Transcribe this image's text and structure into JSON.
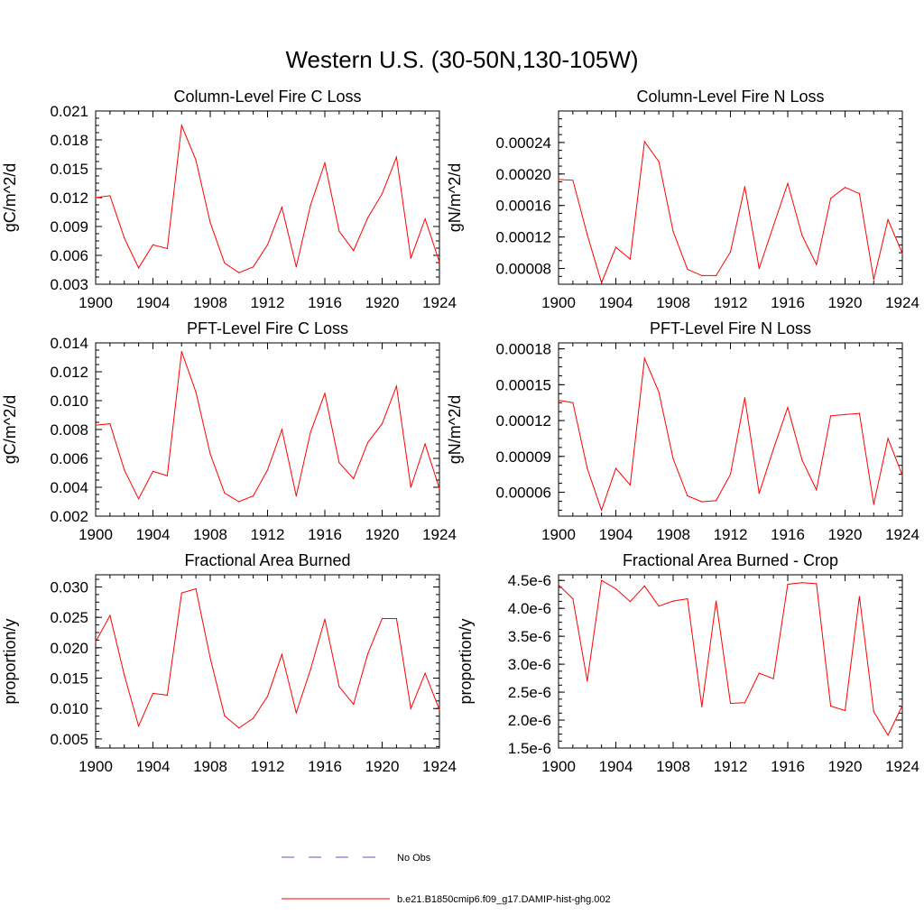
{
  "figure": {
    "title": "Western U.S. (30-50N,130-105W)"
  },
  "colors": {
    "series": "#ff0000",
    "obs": "#5a5ac8",
    "axis": "#000000"
  },
  "legend": {
    "items": [
      {
        "label": "No Obs",
        "style": "dashed",
        "color": "#5a5ac8"
      },
      {
        "label": "b.e21.B1850cmip6.f09_g17.DAMIP-hist-ghg.002",
        "style": "solid",
        "color": "#ff0000"
      }
    ]
  },
  "chart_data": [
    {
      "type": "line",
      "title": "Column-Level Fire C Loss",
      "ylabel": "gC/m^2/d",
      "xlim": [
        1900,
        1924
      ],
      "ylim": [
        0.003,
        0.021
      ],
      "xticks": [
        1900,
        1904,
        1908,
        1912,
        1916,
        1920,
        1924
      ],
      "xtick_labels": [
        "1900",
        "1904",
        "1908",
        "1912",
        "1916",
        "1920",
        "1924"
      ],
      "yticks": [
        0.003,
        0.006,
        0.009,
        0.012,
        0.015,
        0.018,
        0.021
      ],
      "ytick_labels": [
        "0.003",
        "0.006",
        "0.009",
        "0.012",
        "0.015",
        "0.018",
        "0.021"
      ],
      "x": [
        1900,
        1901,
        1902,
        1903,
        1904,
        1905,
        1906,
        1907,
        1908,
        1909,
        1910,
        1911,
        1912,
        1913,
        1914,
        1915,
        1916,
        1917,
        1918,
        1919,
        1920,
        1921,
        1922,
        1923,
        1924
      ],
      "series": [
        {
          "name": "b.e21.B1850cmip6.f09_g17.DAMIP-hist-ghg.002",
          "values": [
            0.012,
            0.0122,
            0.0078,
            0.0047,
            0.0071,
            0.0067,
            0.0195,
            0.0159,
            0.0094,
            0.0052,
            0.0042,
            0.0048,
            0.0071,
            0.011,
            0.0048,
            0.0112,
            0.0156,
            0.0085,
            0.0065,
            0.0099,
            0.0124,
            0.0162,
            0.0057,
            0.0098,
            0.0053
          ]
        }
      ]
    },
    {
      "type": "line",
      "title": "Column-Level Fire N Loss",
      "ylabel": "gN/m^2/d",
      "xlim": [
        1900,
        1924
      ],
      "ylim": [
        6e-05,
        0.00028
      ],
      "xticks": [
        1900,
        1904,
        1908,
        1912,
        1916,
        1920,
        1924
      ],
      "xtick_labels": [
        "1900",
        "1904",
        "1908",
        "1912",
        "1916",
        "1920",
        "1924"
      ],
      "yticks": [
        8e-05,
        0.00012,
        0.00016,
        0.0002,
        0.00024
      ],
      "ytick_labels": [
        "0.00008",
        "0.00012",
        "0.00016",
        "0.00020",
        "0.00024"
      ],
      "x": [
        1900,
        1901,
        1902,
        1903,
        1904,
        1905,
        1906,
        1907,
        1908,
        1909,
        1910,
        1911,
        1912,
        1913,
        1914,
        1915,
        1916,
        1917,
        1918,
        1919,
        1920,
        1921,
        1922,
        1923,
        1924
      ],
      "series": [
        {
          "name": "b.e21.B1850cmip6.f09_g17.DAMIP-hist-ghg.002",
          "values": [
            0.000193,
            0.000192,
            0.000123,
            6.2e-05,
            0.000107,
            9.2e-05,
            0.000241,
            0.000216,
            0.000127,
            7.9e-05,
            7.1e-05,
            7.1e-05,
            0.000101,
            0.000184,
            8e-05,
            0.000134,
            0.000188,
            0.000122,
            8.5e-05,
            0.000169,
            0.000183,
            0.000175,
            6.6e-05,
            0.000142,
            9.9e-05
          ]
        }
      ]
    },
    {
      "type": "line",
      "title": "PFT-Level Fire C Loss",
      "ylabel": "gC/m^2/d",
      "xlim": [
        1900,
        1924
      ],
      "ylim": [
        0.002,
        0.014
      ],
      "xticks": [
        1900,
        1904,
        1908,
        1912,
        1916,
        1920,
        1924
      ],
      "xtick_labels": [
        "1900",
        "1904",
        "1908",
        "1912",
        "1916",
        "1920",
        "1924"
      ],
      "yticks": [
        0.002,
        0.004,
        0.006,
        0.008,
        0.01,
        0.012,
        0.014
      ],
      "ytick_labels": [
        "0.002",
        "0.004",
        "0.006",
        "0.008",
        "0.010",
        "0.012",
        "0.014"
      ],
      "x": [
        1900,
        1901,
        1902,
        1903,
        1904,
        1905,
        1906,
        1907,
        1908,
        1909,
        1910,
        1911,
        1912,
        1913,
        1914,
        1915,
        1916,
        1917,
        1918,
        1919,
        1920,
        1921,
        1922,
        1923,
        1924
      ],
      "series": [
        {
          "name": "b.e21.B1850cmip6.f09_g17.DAMIP-hist-ghg.002",
          "values": [
            0.0083,
            0.0084,
            0.0052,
            0.0032,
            0.0051,
            0.0048,
            0.0134,
            0.0106,
            0.0063,
            0.0036,
            0.003,
            0.0034,
            0.0052,
            0.008,
            0.0034,
            0.0078,
            0.0105,
            0.0057,
            0.0046,
            0.0071,
            0.0084,
            0.011,
            0.004,
            0.007,
            0.0039
          ]
        }
      ]
    },
    {
      "type": "line",
      "title": "PFT-Level Fire N Loss",
      "ylabel": "gN/m^2/d",
      "xlim": [
        1900,
        1924
      ],
      "ylim": [
        4e-05,
        0.000185
      ],
      "xticks": [
        1900,
        1904,
        1908,
        1912,
        1916,
        1920,
        1924
      ],
      "xtick_labels": [
        "1900",
        "1904",
        "1908",
        "1912",
        "1916",
        "1920",
        "1924"
      ],
      "yticks": [
        6e-05,
        9e-05,
        0.00012,
        0.00015,
        0.00018
      ],
      "ytick_labels": [
        "0.00006",
        "0.00009",
        "0.00012",
        "0.00015",
        "0.00018"
      ],
      "x": [
        1900,
        1901,
        1902,
        1903,
        1904,
        1905,
        1906,
        1907,
        1908,
        1909,
        1910,
        1911,
        1912,
        1913,
        1914,
        1915,
        1916,
        1917,
        1918,
        1919,
        1920,
        1921,
        1922,
        1923,
        1924
      ],
      "series": [
        {
          "name": "b.e21.B1850cmip6.f09_g17.DAMIP-hist-ghg.002",
          "values": [
            0.000137,
            0.000135,
            8e-05,
            4.5e-05,
            8e-05,
            6.6e-05,
            0.000172,
            0.000144,
            8.8e-05,
            5.7e-05,
            5.2e-05,
            5.3e-05,
            7.5e-05,
            0.000139,
            5.9e-05,
            9.6e-05,
            0.000131,
            8.7e-05,
            6.2e-05,
            0.000124,
            0.000125,
            0.000126,
            5e-05,
            0.000105,
            7.4e-05
          ]
        }
      ]
    },
    {
      "type": "line",
      "title": "Fractional Area Burned",
      "ylabel": "proportion/y",
      "xlim": [
        1900,
        1924
      ],
      "ylim": [
        0.0035,
        0.032
      ],
      "xticks": [
        1900,
        1904,
        1908,
        1912,
        1916,
        1920,
        1924
      ],
      "xtick_labels": [
        "1900",
        "1904",
        "1908",
        "1912",
        "1916",
        "1920",
        "1924"
      ],
      "yticks": [
        0.005,
        0.01,
        0.015,
        0.02,
        0.025,
        0.03
      ],
      "ytick_labels": [
        "0.005",
        "0.010",
        "0.015",
        "0.020",
        "0.025",
        "0.030"
      ],
      "x": [
        1900,
        1901,
        1902,
        1903,
        1904,
        1905,
        1906,
        1907,
        1908,
        1909,
        1910,
        1911,
        1912,
        1913,
        1914,
        1915,
        1916,
        1917,
        1918,
        1919,
        1920,
        1921,
        1922,
        1923,
        1924
      ],
      "series": [
        {
          "name": "b.e21.B1850cmip6.f09_g17.DAMIP-hist-ghg.002",
          "values": [
            0.021,
            0.0253,
            0.0155,
            0.0071,
            0.0125,
            0.0122,
            0.029,
            0.0297,
            0.0183,
            0.0088,
            0.0068,
            0.0084,
            0.012,
            0.0189,
            0.0093,
            0.0164,
            0.0247,
            0.0136,
            0.0107,
            0.019,
            0.0248,
            0.0248,
            0.01,
            0.0158,
            0.0098
          ]
        }
      ]
    },
    {
      "type": "line",
      "title": "Fractional Area Burned - Crop",
      "ylabel": "proportion/y",
      "xlim": [
        1900,
        1924
      ],
      "ylim": [
        1.5e-06,
        4.6e-06
      ],
      "xticks": [
        1900,
        1904,
        1908,
        1912,
        1916,
        1920,
        1924
      ],
      "xtick_labels": [
        "1900",
        "1904",
        "1908",
        "1912",
        "1916",
        "1920",
        "1924"
      ],
      "yticks": [
        1.5e-06,
        2e-06,
        2.5e-06,
        3e-06,
        3.5e-06,
        4e-06,
        4.5e-06
      ],
      "ytick_labels": [
        "1.5e-6",
        "2.0e-6",
        "2.5e-6",
        "3.0e-6",
        "3.5e-6",
        "4.0e-6",
        "4.5e-6"
      ],
      "x": [
        1900,
        1901,
        1902,
        1903,
        1904,
        1905,
        1906,
        1907,
        1908,
        1909,
        1910,
        1911,
        1912,
        1913,
        1914,
        1915,
        1916,
        1917,
        1918,
        1919,
        1920,
        1921,
        1922,
        1923,
        1924
      ],
      "series": [
        {
          "name": "b.e21.B1850cmip6.f09_g17.DAMIP-hist-ghg.002",
          "values": [
            4.42e-06,
            4.17e-06,
            2.7e-06,
            4.5e-06,
            4.35e-06,
            4.12e-06,
            4.4e-06,
            4.04e-06,
            4.13e-06,
            4.17e-06,
            2.24e-06,
            4.13e-06,
            2.3e-06,
            2.31e-06,
            2.84e-06,
            2.74e-06,
            4.43e-06,
            4.46e-06,
            4.44e-06,
            2.25e-06,
            2.17e-06,
            4.21e-06,
            2.15e-06,
            1.73e-06,
            2.26e-06
          ]
        }
      ]
    }
  ]
}
